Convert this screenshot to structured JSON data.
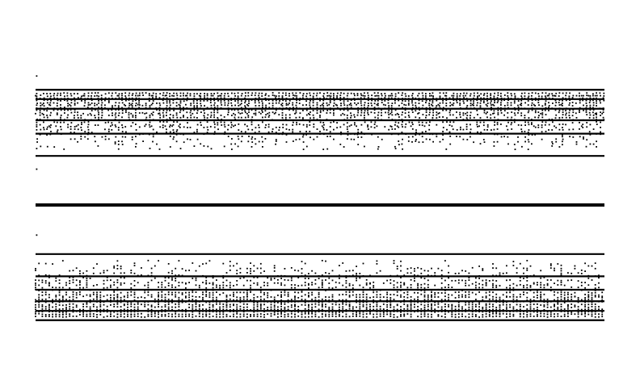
{
  "chart_data": {
    "type": "scatter",
    "title": "",
    "xlabel": "",
    "ylabel": "",
    "xlim": [
      0,
      1
    ],
    "ylim": [
      -1,
      1
    ],
    "axes_visible": false,
    "grid": false,
    "legend": "none",
    "point_color": "#000000",
    "background_color": "#ffffff",
    "solid_bands": [
      {
        "y": 0.0,
        "weight": "heavy"
      },
      {
        "y": 0.274,
        "weight": "medium"
      },
      {
        "y": -0.274,
        "weight": "medium"
      },
      {
        "y": 0.398,
        "weight": "medium"
      },
      {
        "y": -0.398,
        "weight": "medium"
      },
      {
        "y": 0.473,
        "weight": "medium"
      },
      {
        "y": -0.473,
        "weight": "medium"
      },
      {
        "y": 0.537,
        "weight": "medium"
      },
      {
        "y": -0.537,
        "weight": "medium"
      },
      {
        "y": 0.591,
        "weight": "medium"
      },
      {
        "y": -0.591,
        "weight": "medium"
      },
      {
        "y": 0.643,
        "weight": "medium"
      },
      {
        "y": -0.643,
        "weight": "medium"
      }
    ],
    "upper_envelope": [
      {
        "x": 0.0,
        "y": 0.67
      },
      {
        "x": 0.05,
        "y": 0.78
      },
      {
        "x": 0.2,
        "y": 0.86
      },
      {
        "x": 0.5,
        "y": 0.9
      },
      {
        "x": 0.8,
        "y": 0.93
      },
      {
        "x": 1.0,
        "y": 0.97
      }
    ],
    "isolated_points": [
      {
        "x": 0.002,
        "y": 0.2
      },
      {
        "x": 0.002,
        "y": 0.315
      },
      {
        "x": 0.002,
        "y": 0.72
      },
      {
        "x": 0.002,
        "y": -0.168
      }
    ]
  }
}
